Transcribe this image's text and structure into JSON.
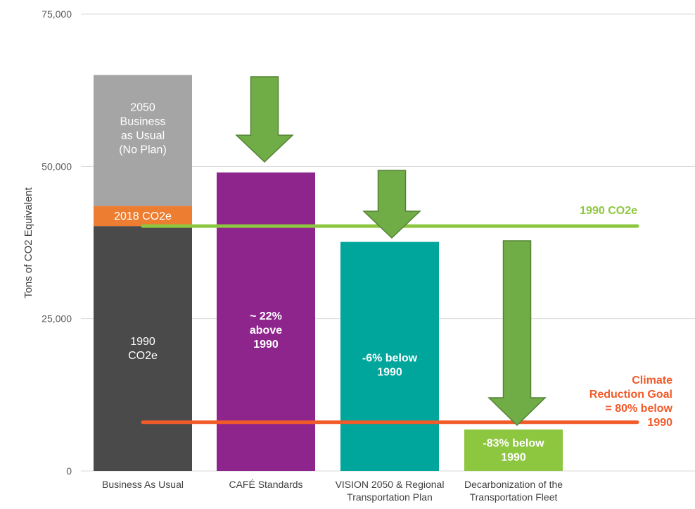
{
  "chart_data": {
    "type": "bar",
    "title": "",
    "xlabel": "",
    "ylabel": "Tons of CO2 Equivalent",
    "ylim": [
      0,
      75000
    ],
    "yticks": [
      0,
      25000,
      50000,
      75000
    ],
    "ytick_labels": [
      "0",
      "25,000",
      "50,000",
      "75,000"
    ],
    "grid": true,
    "categories": [
      "Business As Usual",
      "CAFÉ Standards",
      "VISION 2050 & Regional Transportation Plan",
      "Decarbonization of the Transportation Fleet"
    ],
    "category_label_lines": [
      [
        "Business As Usual"
      ],
      [
        "CAFÉ Standards"
      ],
      [
        "VISION 2050 & Regional",
        "Transportation Plan"
      ],
      [
        "Decarbonization of the",
        "Transportation Fleet"
      ]
    ],
    "bars": [
      {
        "category": "Business As Usual",
        "segments": [
          {
            "name": "1990 CO2e",
            "value": 40200,
            "color": "#4a4a4a",
            "label_lines": [
              "1990",
              "CO2e"
            ],
            "label_color": "#ffffff",
            "bold": false
          },
          {
            "name": "2018 CO2e",
            "value": 3300,
            "color": "#ed7d31",
            "label_lines": [
              "2018 CO2e"
            ],
            "label_color": "#ffffff",
            "bold": false
          },
          {
            "name": "2050 Business as Usual (No Plan)",
            "value": 21500,
            "color": "#a5a5a5",
            "label_lines": [
              "2050",
              "Business",
              "as Usual",
              "(No Plan)"
            ],
            "label_color": "#ffffff",
            "bold": false
          }
        ]
      },
      {
        "category": "CAFÉ Standards",
        "segments": [
          {
            "name": "CAFÉ Standards",
            "value": 49000,
            "color": "#8e258d",
            "label_lines": [
              "~ 22%",
              "above",
              "1990"
            ],
            "label_color": "#ffffff",
            "bold": true
          }
        ]
      },
      {
        "category": "VISION 2050 & Regional Transportation Plan",
        "segments": [
          {
            "name": "VISION 2050",
            "value": 37600,
            "color": "#00a59b",
            "label_lines": [
              "-6% below",
              "1990"
            ],
            "label_color": "#ffffff",
            "bold": true
          }
        ]
      },
      {
        "category": "Decarbonization of the Transportation Fleet",
        "segments": [
          {
            "name": "Decarbonization",
            "value": 6800,
            "color": "#8dc63f",
            "label_lines": [
              "-83% below",
              "1990"
            ],
            "label_color": "#ffffff",
            "bold": true
          }
        ]
      }
    ],
    "reference_lines": [
      {
        "name": "1990 CO2e",
        "value": 40200,
        "color": "#8dc63f",
        "label_lines": [
          "1990 CO2e"
        ]
      },
      {
        "name": "Climate Reduction Goal",
        "value": 8000,
        "color": "#f15a29",
        "label_lines": [
          "Climate",
          "Reduction Goal",
          "= 80% below",
          "1990"
        ]
      }
    ],
    "arrows": [
      {
        "from_category": 1,
        "from_value": 65000,
        "to_value": 49000,
        "color": "#70ad47"
      },
      {
        "from_category": 2,
        "from_value": 49000,
        "to_value": 37600,
        "color": "#70ad47"
      },
      {
        "from_category": 3,
        "from_value": 37600,
        "to_value": 6800,
        "color": "#70ad47"
      }
    ]
  }
}
